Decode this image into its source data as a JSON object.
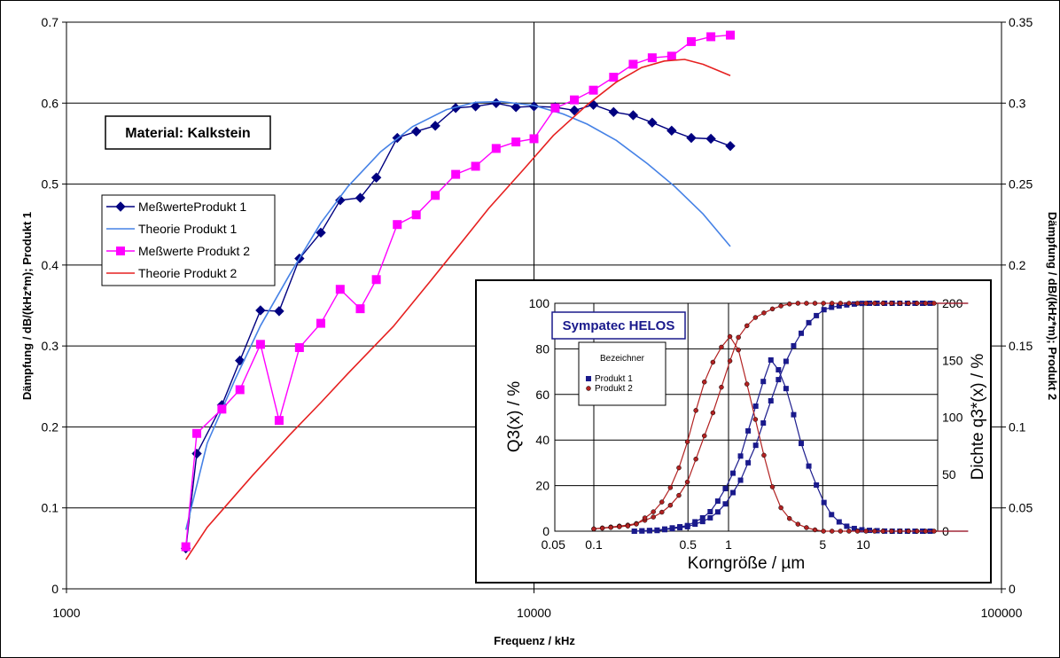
{
  "chart_data": [
    {
      "type": "line",
      "xlabel": "Frequenz / kHz",
      "ylabel": "Dämpfung / dB/(kHz*m); Produkt 1",
      "y2label": "Dämpfung / dB/(kHz*m); Produkt 2",
      "x_scale": "log",
      "xlim": [
        1000,
        100000
      ],
      "ylim": [
        0,
        0.7
      ],
      "y2lim": [
        0,
        0.35
      ],
      "x_ticks": [
        "1000",
        "10000",
        "100000"
      ],
      "y_ticks": [
        "0",
        "0.1",
        "0.2",
        "0.3",
        "0.4",
        "0.5",
        "0.6",
        "0.7"
      ],
      "y2_ticks": [
        "0",
        "0.05",
        "0.1",
        "0.15",
        "0.2",
        "0.25",
        "0.3",
        "0.35"
      ],
      "annotation": "Material: Kalkstein",
      "grid": true,
      "legend_position": "left",
      "legend": [
        "MeßwerteProdukt 1",
        "Theorie Produkt 1",
        "Meßwerte Produkt 2",
        "Theorie Produkt 2"
      ],
      "series": [
        {
          "name": "MeßwerteProdukt 1",
          "axis": "left",
          "color": "#000080",
          "marker": "diamond",
          "points": [
            [
              1800,
              0.05
            ],
            [
              1900,
              0.167
            ],
            [
              2150,
              0.227
            ],
            [
              2350,
              0.282
            ],
            [
              2600,
              0.344
            ],
            [
              2850,
              0.343
            ],
            [
              3150,
              0.408
            ],
            [
              3500,
              0.44
            ],
            [
              3850,
              0.48
            ],
            [
              4250,
              0.483
            ],
            [
              4600,
              0.508
            ],
            [
              5100,
              0.557
            ],
            [
              5600,
              0.565
            ],
            [
              6150,
              0.572
            ],
            [
              6800,
              0.594
            ],
            [
              7500,
              0.596
            ],
            [
              8300,
              0.6
            ],
            [
              9150,
              0.595
            ],
            [
              10000,
              0.596
            ],
            [
              11100,
              0.595
            ],
            [
              12200,
              0.591
            ],
            [
              13400,
              0.598
            ],
            [
              14800,
              0.589
            ],
            [
              16300,
              0.585
            ],
            [
              17900,
              0.576
            ],
            [
              19700,
              0.566
            ],
            [
              21700,
              0.557
            ],
            [
              23900,
              0.556
            ],
            [
              26300,
              0.547
            ]
          ]
        },
        {
          "name": "Theorie Produkt 1",
          "axis": "left",
          "color": "#4682e6",
          "marker": "none",
          "points": [
            [
              1800,
              0.073
            ],
            [
              2000,
              0.18
            ],
            [
              2300,
              0.26
            ],
            [
              2600,
              0.325
            ],
            [
              3000,
              0.388
            ],
            [
              3500,
              0.452
            ],
            [
              4000,
              0.497
            ],
            [
              4700,
              0.54
            ],
            [
              5500,
              0.571
            ],
            [
              6500,
              0.592
            ],
            [
              7500,
              0.601
            ],
            [
              8500,
              0.602
            ],
            [
              10000,
              0.597
            ],
            [
              11500,
              0.587
            ],
            [
              13000,
              0.574
            ],
            [
              15000,
              0.554
            ],
            [
              17500,
              0.525
            ],
            [
              20000,
              0.497
            ],
            [
              23000,
              0.463
            ],
            [
              26300,
              0.423
            ]
          ]
        },
        {
          "name": "Meßwerte Produkt 2",
          "axis": "right",
          "color": "#ff00ff",
          "marker": "square",
          "points": [
            [
              1800,
              0.026
            ],
            [
              1900,
              0.096
            ],
            [
              2150,
              0.111
            ],
            [
              2350,
              0.123
            ],
            [
              2600,
              0.151
            ],
            [
              2850,
              0.104
            ],
            [
              3150,
              0.149
            ],
            [
              3500,
              0.164
            ],
            [
              3850,
              0.185
            ],
            [
              4250,
              0.173
            ],
            [
              4600,
              0.191
            ],
            [
              5100,
              0.225
            ],
            [
              5600,
              0.231
            ],
            [
              6150,
              0.243
            ],
            [
              6800,
              0.256
            ],
            [
              7500,
              0.261
            ],
            [
              8300,
              0.272
            ],
            [
              9150,
              0.276
            ],
            [
              10000,
              0.278
            ],
            [
              11100,
              0.297
            ],
            [
              12200,
              0.302
            ],
            [
              13400,
              0.308
            ],
            [
              14800,
              0.316
            ],
            [
              16300,
              0.324
            ],
            [
              17900,
              0.328
            ],
            [
              19700,
              0.329
            ],
            [
              21700,
              0.338
            ],
            [
              23900,
              0.341
            ],
            [
              26300,
              0.342
            ]
          ]
        },
        {
          "name": "Theorie Produkt 2",
          "axis": "right",
          "color": "#e62020",
          "marker": "none",
          "points": [
            [
              1800,
              0.018
            ],
            [
              2000,
              0.038
            ],
            [
              2500,
              0.07
            ],
            [
              3000,
              0.095
            ],
            [
              3500,
              0.115
            ],
            [
              4000,
              0.133
            ],
            [
              5000,
              0.162
            ],
            [
              6000,
              0.19
            ],
            [
              7000,
              0.214
            ],
            [
              8000,
              0.235
            ],
            [
              9500,
              0.259
            ],
            [
              11000,
              0.28
            ],
            [
              13000,
              0.299
            ],
            [
              15000,
              0.313
            ],
            [
              17000,
              0.322
            ],
            [
              19000,
              0.326
            ],
            [
              21000,
              0.327
            ],
            [
              23000,
              0.324
            ],
            [
              26300,
              0.317
            ]
          ]
        }
      ]
    },
    {
      "type": "line",
      "title": "Sympatec HELOS",
      "xlabel": "Korngröße / µm",
      "ylabel": "Q3(x) / %",
      "y2label": "Dichte q3*(x) / %",
      "x_scale": "log",
      "ylim": [
        0,
        100
      ],
      "y2lim": [
        0,
        200
      ],
      "x_ticks": [
        "0.05",
        "0.1",
        "0.5",
        "1",
        "5",
        "10"
      ],
      "y_ticks": [
        "0",
        "20",
        "40",
        "60",
        "80",
        "100"
      ],
      "y2_ticks": [
        "0",
        "50",
        "100",
        "150",
        "200"
      ],
      "legend_title": "Bezeichner",
      "legend": [
        "Produkt 1",
        "Produkt 2"
      ],
      "series": [
        {
          "name": "Produkt 1",
          "color": "#1a1a8c",
          "marker": "square",
          "cumulative_Q3": [
            [
              0.2,
              0
            ],
            [
              0.3,
              0.3
            ],
            [
              0.5,
              2
            ],
            [
              0.7,
              5
            ],
            [
              0.9,
              10
            ],
            [
              1.2,
              21
            ],
            [
              1.6,
              38
            ],
            [
              2.0,
              55
            ],
            [
              2.5,
              71
            ],
            [
              3.2,
              84
            ],
            [
              4,
              92
            ],
            [
              5,
              97
            ],
            [
              6,
              98.5
            ],
            [
              8,
              99.5
            ],
            [
              10,
              100
            ],
            [
              20,
              100
            ],
            [
              60,
              100
            ]
          ],
          "density_q3": [
            [
              0.2,
              0
            ],
            [
              0.3,
              1
            ],
            [
              0.5,
              5
            ],
            [
              0.7,
              14
            ],
            [
              0.9,
              32
            ],
            [
              1.2,
              62
            ],
            [
              1.5,
              100
            ],
            [
              1.8,
              130
            ],
            [
              2.0,
              152
            ],
            [
              2.3,
              144
            ],
            [
              2.6,
              130
            ],
            [
              3.0,
              105
            ],
            [
              3.5,
              75
            ],
            [
              4,
              55
            ],
            [
              5,
              27
            ],
            [
              6,
              12
            ],
            [
              7,
              6
            ],
            [
              8,
              3
            ],
            [
              10,
              1
            ],
            [
              15,
              0
            ],
            [
              60,
              0
            ]
          ]
        },
        {
          "name": "Produkt 2",
          "color": "#b22222",
          "marker": "circle",
          "cumulative_Q3": [
            [
              0.1,
              1
            ],
            [
              0.2,
              3
            ],
            [
              0.3,
              7
            ],
            [
              0.4,
              13
            ],
            [
              0.5,
              22
            ],
            [
              0.6,
              35
            ],
            [
              0.8,
              55
            ],
            [
              1.0,
              73
            ],
            [
              1.2,
              86
            ],
            [
              1.5,
              93
            ],
            [
              2.0,
              97
            ],
            [
              2.5,
              99
            ],
            [
              3,
              100
            ],
            [
              10,
              100
            ],
            [
              60,
              100
            ]
          ],
          "density_q3": [
            [
              0.1,
              2
            ],
            [
              0.2,
              5
            ],
            [
              0.3,
              20
            ],
            [
              0.4,
              45
            ],
            [
              0.5,
              80
            ],
            [
              0.6,
              115
            ],
            [
              0.7,
              140
            ],
            [
              0.85,
              158
            ],
            [
              1.0,
              172
            ],
            [
              1.15,
              165
            ],
            [
              1.3,
              140
            ],
            [
              1.5,
              110
            ],
            [
              1.8,
              70
            ],
            [
              2.1,
              40
            ],
            [
              2.5,
              18
            ],
            [
              3,
              8
            ],
            [
              4,
              2
            ],
            [
              5,
              0
            ],
            [
              60,
              0
            ]
          ]
        }
      ]
    }
  ]
}
